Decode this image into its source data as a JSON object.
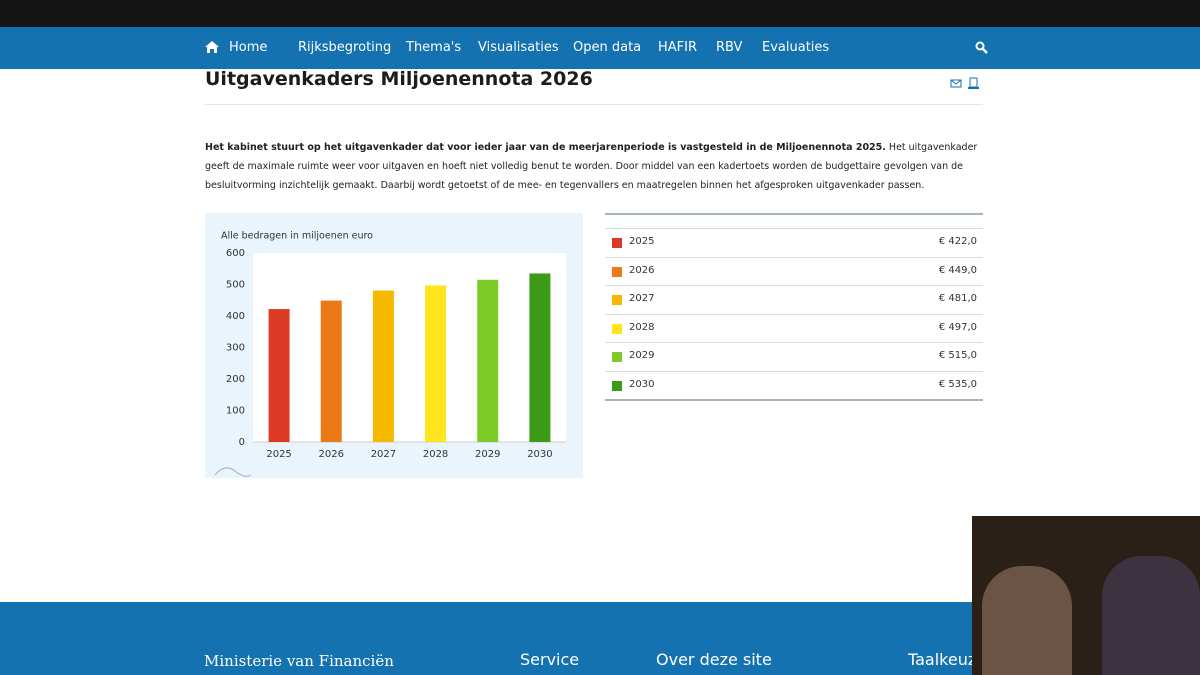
{
  "nav": {
    "home": "Home",
    "items": [
      "Rijksbegroting",
      "Thema's",
      "Visualisaties",
      "Open data",
      "HAFIR",
      "RBV",
      "Evaluaties"
    ]
  },
  "page": {
    "title": "Uitgavenkaders Miljoenennota 2026",
    "intro_bold": "Het kabinet stuurt op het uitgavenkader dat voor ieder jaar van de meerjarenperiode is vastgesteld in de Miljoenennota 2025.",
    "intro_text": "Het uitgavenkader geeft de maximale ruimte weer voor uitgaven en hoeft niet volledig benut te worden. Door middel van een kadertoets worden de budgettaire gevolgen van de besluitvorming inzichtelijk gemaakt. Daarbij wordt getoetst of de mee- en tegenvallers en maatregelen binnen het afgesproken uitgavenkader passen."
  },
  "chart_data": {
    "type": "bar",
    "subtitle": "Alle bedragen in miljoenen euro",
    "categories": [
      "2025",
      "2026",
      "2027",
      "2028",
      "2029",
      "2030"
    ],
    "values": [
      422,
      449,
      481,
      497,
      515,
      535
    ],
    "colors": [
      "#dc3a24",
      "#ea7a16",
      "#f7b900",
      "#ffe51e",
      "#7ccb27",
      "#3c9a17"
    ],
    "ylim": [
      0,
      600
    ],
    "yticks": [
      0,
      100,
      200,
      300,
      400,
      500,
      600
    ]
  },
  "table": {
    "rows": [
      [
        "2025",
        "€ 422,0"
      ],
      [
        "2026",
        "€ 449,0"
      ],
      [
        "2027",
        "€ 481,0"
      ],
      [
        "2028",
        "€ 497,0"
      ],
      [
        "2029",
        "€ 515,0"
      ],
      [
        "2030",
        "€ 535,0"
      ]
    ]
  },
  "footer": {
    "columns": [
      "Ministerie van Financiën",
      "Service",
      "Over deze site",
      "Taalkeuz"
    ]
  }
}
